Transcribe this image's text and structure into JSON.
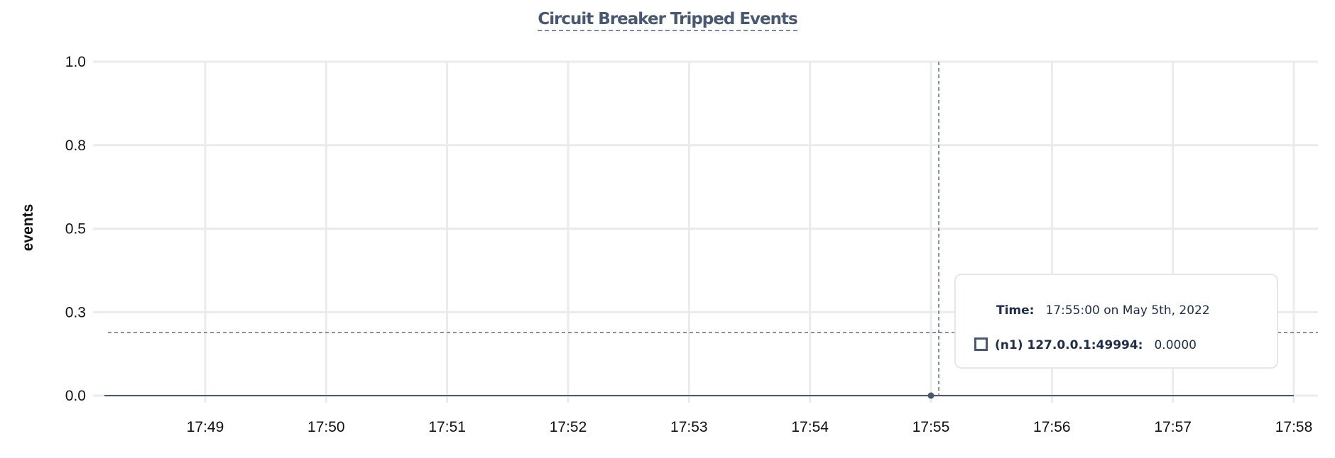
{
  "chart_data": {
    "type": "line",
    "title": "Circuit Breaker Tripped Events",
    "xlabel": "",
    "ylabel": "events",
    "ylim": [
      0,
      1.0
    ],
    "y_ticks": [
      "0.0",
      "0.3",
      "0.5",
      "0.8",
      "1.0"
    ],
    "y_tick_values": [
      0,
      0.25,
      0.5,
      0.75,
      1.0
    ],
    "x_ticks": [
      "17:49",
      "17:50",
      "17:51",
      "17:52",
      "17:53",
      "17:54",
      "17:55",
      "17:56",
      "17:57",
      "17:58"
    ],
    "grid": true,
    "series": [
      {
        "name": "(n1) 127.0.0.1:49994",
        "color": "#475872",
        "x": [
          "17:48:10",
          "17:55:00",
          "17:58:00"
        ],
        "y": [
          0,
          0,
          0
        ]
      }
    ],
    "hover": {
      "x": "17:55:00",
      "y": 0
    }
  },
  "tooltip": {
    "time_label": "Time:",
    "time_value": "17:55:00 on May 5th, 2022",
    "series_label": "(n1) 127.0.0.1:49994:",
    "series_value": "0.0000"
  },
  "colors": {
    "series": "#475872",
    "grid": "#ebebeb",
    "title": "#475872",
    "crosshair": "#5d6f84"
  }
}
